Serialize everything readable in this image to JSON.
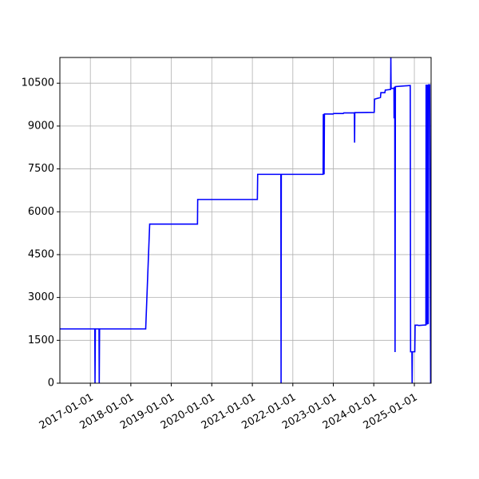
{
  "chart_data": {
    "type": "line",
    "title": "",
    "xlabel": "",
    "ylabel": "",
    "x_axis_type": "date",
    "xlim": [
      "2016-04-01",
      "2025-06-01"
    ],
    "ylim": [
      0,
      11400
    ],
    "grid": true,
    "legend": "none",
    "series_color": "#0000ff",
    "xticks": [
      "2017-01-01",
      "2018-01-01",
      "2019-01-01",
      "2020-01-01",
      "2021-01-01",
      "2022-01-01",
      "2023-01-01",
      "2024-01-01",
      "2025-01-01"
    ],
    "yticks": [
      0,
      1500,
      3000,
      4500,
      6000,
      7500,
      9000,
      10500
    ],
    "series": [
      {
        "points": [
          [
            "2016-04-01",
            1900
          ],
          [
            "2017-02-10",
            1900
          ],
          [
            "2017-02-12",
            0
          ],
          [
            "2017-02-15",
            1900
          ],
          [
            "2017-03-20",
            1900
          ],
          [
            "2017-03-22",
            0
          ],
          [
            "2017-03-25",
            1900
          ],
          [
            "2018-05-15",
            1900
          ],
          [
            "2018-06-20",
            5570
          ],
          [
            "2019-08-25",
            5570
          ],
          [
            "2019-08-27",
            6430
          ],
          [
            "2021-02-15",
            6430
          ],
          [
            "2021-02-18",
            7310
          ],
          [
            "2021-09-15",
            7310
          ],
          [
            "2021-09-17",
            0
          ],
          [
            "2021-09-19",
            7310
          ],
          [
            "2022-10-01",
            7310
          ],
          [
            "2022-10-03",
            9420
          ],
          [
            "2022-10-05",
            7310
          ],
          [
            "2022-10-08",
            9420
          ],
          [
            "2022-10-10",
            7310
          ],
          [
            "2022-10-13",
            9420
          ],
          [
            "2023-01-01",
            9420
          ],
          [
            "2023-01-05",
            9440
          ],
          [
            "2023-04-01",
            9440
          ],
          [
            "2023-04-05",
            9460
          ],
          [
            "2023-07-10",
            9460
          ],
          [
            "2023-07-12",
            8420
          ],
          [
            "2023-07-14",
            9470
          ],
          [
            "2024-01-05",
            9480
          ],
          [
            "2024-01-08",
            9940
          ],
          [
            "2024-03-01",
            10000
          ],
          [
            "2024-03-05",
            10170
          ],
          [
            "2024-04-10",
            10170
          ],
          [
            "2024-04-14",
            10260
          ],
          [
            "2024-06-01",
            10280
          ],
          [
            "2024-06-03",
            11400
          ],
          [
            "2024-06-05",
            10320
          ],
          [
            "2024-07-01",
            10320
          ],
          [
            "2024-07-02",
            9270
          ],
          [
            "2024-07-04",
            10350
          ],
          [
            "2024-07-08",
            10350
          ],
          [
            "2024-07-11",
            1090
          ],
          [
            "2024-07-14",
            10380
          ],
          [
            "2024-11-25",
            10420
          ],
          [
            "2024-11-28",
            1100
          ],
          [
            "2024-12-10",
            1100
          ],
          [
            "2024-12-12",
            0
          ],
          [
            "2024-12-14",
            1100
          ],
          [
            "2025-01-05",
            1100
          ],
          [
            "2025-01-08",
            2030
          ],
          [
            "2025-02-01",
            2030
          ],
          [
            "2025-02-10",
            2020
          ],
          [
            "2025-04-15",
            2040
          ],
          [
            "2025-04-17",
            10450
          ],
          [
            "2025-04-19",
            2050
          ],
          [
            "2025-04-21",
            10440
          ],
          [
            "2025-04-23",
            2050
          ],
          [
            "2025-04-25",
            10450
          ],
          [
            "2025-04-27",
            2060
          ],
          [
            "2025-04-29",
            10440
          ],
          [
            "2025-05-01",
            2060
          ],
          [
            "2025-05-03",
            10450
          ],
          [
            "2025-05-06",
            2070
          ],
          [
            "2025-05-09",
            10440
          ],
          [
            "2025-05-20",
            10440
          ],
          [
            "2025-05-28",
            0
          ]
        ]
      }
    ]
  }
}
